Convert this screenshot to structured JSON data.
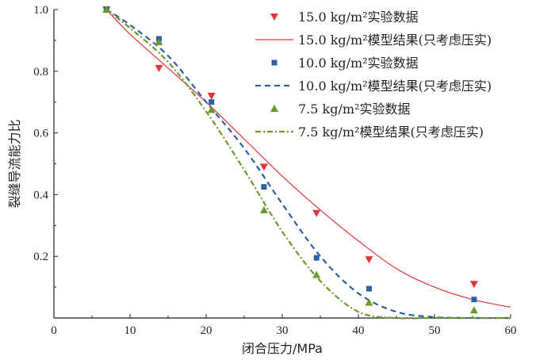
{
  "chart_data": {
    "type": "scatter",
    "xlabel": "闭合压力/MPa",
    "ylabel": "裂缝导流能力比",
    "xlim": [
      0,
      60
    ],
    "ylim": [
      0,
      1.0
    ],
    "x_ticks": [
      "0",
      "10",
      "20",
      "30",
      "40",
      "50",
      "60"
    ],
    "y_ticks": [
      "0.2",
      "0.4",
      "0.6",
      "0.8",
      "1.0"
    ],
    "grid": false,
    "legend_position": "top-right",
    "series": [
      {
        "name": "15.0 kg/m²实验数据",
        "kind": "points",
        "marker": "triangle-down",
        "color": "#e2343c",
        "x": [
          6.9,
          13.8,
          20.7,
          27.6,
          34.5,
          41.4,
          55.2
        ],
        "y": [
          1.0,
          0.81,
          0.72,
          0.49,
          0.34,
          0.19,
          0.11
        ]
      },
      {
        "name": "15.0 kg/m²模型结果(只考虑压实)",
        "kind": "line",
        "dash": "solid",
        "color": "#e2343c",
        "x": [
          6.9,
          10,
          15,
          20,
          25,
          30,
          35,
          40,
          45,
          50,
          55,
          60
        ],
        "y": [
          1.0,
          0.92,
          0.81,
          0.7,
          0.58,
          0.46,
          0.35,
          0.25,
          0.16,
          0.1,
          0.06,
          0.035
        ]
      },
      {
        "name": "10.0 kg/m²实验数据",
        "kind": "points",
        "marker": "square",
        "color": "#2e5fa3",
        "x": [
          6.9,
          13.8,
          20.7,
          27.6,
          34.5,
          41.4,
          55.2
        ],
        "y": [
          1.0,
          0.905,
          0.7,
          0.425,
          0.195,
          0.095,
          0.06
        ]
      },
      {
        "name": "10.0 kg/m²模型结果(只考虑压实)",
        "kind": "line",
        "dash": "dashed",
        "color": "#2e5fa3",
        "x": [
          6.9,
          10,
          15,
          20,
          25,
          30,
          35,
          40,
          45,
          50,
          55,
          60
        ],
        "y": [
          1.0,
          0.95,
          0.85,
          0.7,
          0.55,
          0.37,
          0.2,
          0.08,
          0.02,
          0.003,
          0.0,
          0.0
        ]
      },
      {
        "name": "7.5 kg/m²实验数据",
        "kind": "points",
        "marker": "triangle-up",
        "color": "#6b9a2c",
        "x": [
          6.9,
          13.8,
          20.7,
          27.6,
          34.5,
          41.4,
          55.2
        ],
        "y": [
          1.0,
          0.895,
          0.675,
          0.35,
          0.14,
          0.05,
          0.025
        ]
      },
      {
        "name": "7.5 kg/m²模型结果(只考虑压实)",
        "kind": "line",
        "dash": "dash-dot",
        "color": "#6b9a2c",
        "x": [
          6.9,
          10,
          15,
          20,
          25,
          30,
          35,
          40,
          45,
          50,
          55,
          60
        ],
        "y": [
          1.0,
          0.94,
          0.83,
          0.67,
          0.48,
          0.28,
          0.12,
          0.02,
          0.0,
          0.0,
          0.0,
          0.0
        ]
      }
    ]
  }
}
